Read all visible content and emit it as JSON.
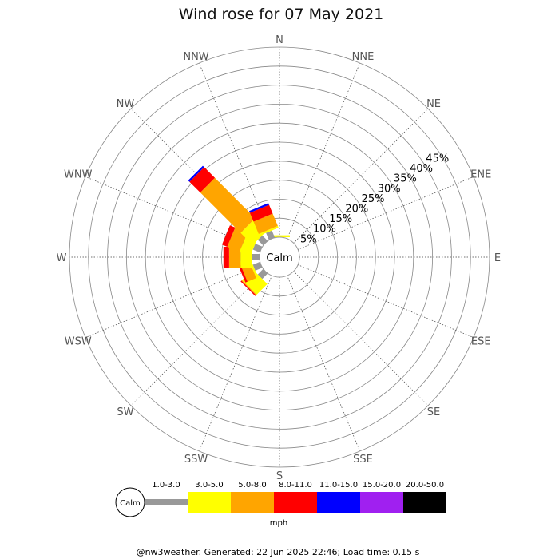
{
  "title": "Wind rose for 07 May 2021",
  "calm_label": "Calm",
  "unit_label": "mph",
  "footer": "@nw3weather. Generated: 22 Jun 2025 22:46; Load time: 0.15 s",
  "chart_data": {
    "type": "wind-rose",
    "title": "Wind rose for 07 May 2021",
    "radial_unit": "%",
    "radial_ticks": [
      "5%",
      "10%",
      "15%",
      "20%",
      "25%",
      "30%",
      "35%",
      "40%",
      "45%"
    ],
    "radial_max": 50,
    "directions": [
      "N",
      "NNE",
      "NE",
      "ENE",
      "E",
      "ESE",
      "SE",
      "SSE",
      "S",
      "SSW",
      "SW",
      "WSW",
      "W",
      "WNW",
      "NW",
      "NNW"
    ],
    "speed_bins": [
      {
        "label": "1.0-3.0",
        "color": "#999999"
      },
      {
        "label": "3.0-5.0",
        "color": "#ffff00"
      },
      {
        "label": "5.0-8.0",
        "color": "#ffa500"
      },
      {
        "label": "8.0-11.0",
        "color": "#ff0000"
      },
      {
        "label": "11.0-15.0",
        "color": "#0000ff"
      },
      {
        "label": "15.0-20.0",
        "color": "#a020f0"
      },
      {
        "label": "20.0-50.0",
        "color": "#000000"
      }
    ],
    "series": [
      {
        "direction": "N",
        "values": [
          0,
          0.5,
          0,
          0,
          0,
          0,
          0
        ]
      },
      {
        "direction": "NNE",
        "values": [
          0,
          0,
          0,
          0,
          0,
          0,
          0
        ]
      },
      {
        "direction": "NE",
        "values": [
          0,
          0,
          0,
          0,
          0,
          0,
          0
        ]
      },
      {
        "direction": "ENE",
        "values": [
          0,
          0,
          0,
          0,
          0,
          0,
          0
        ]
      },
      {
        "direction": "E",
        "values": [
          0,
          0,
          0,
          0,
          0,
          0,
          0
        ]
      },
      {
        "direction": "ESE",
        "values": [
          0,
          0,
          0,
          0,
          0,
          0,
          0
        ]
      },
      {
        "direction": "SE",
        "values": [
          0,
          0,
          0,
          0,
          0,
          0,
          0
        ]
      },
      {
        "direction": "SSE",
        "values": [
          0,
          0,
          0,
          0,
          0,
          0,
          0
        ]
      },
      {
        "direction": "S",
        "values": [
          0,
          0,
          0,
          0,
          0,
          0,
          0
        ]
      },
      {
        "direction": "SSW",
        "values": [
          0,
          0,
          0,
          0,
          0,
          0,
          0
        ]
      },
      {
        "direction": "SW",
        "values": [
          2,
          4,
          0.2,
          0.3,
          0,
          0,
          0
        ]
      },
      {
        "direction": "WSW",
        "values": [
          2,
          0.5,
          2.5,
          0.6,
          0,
          0,
          0
        ]
      },
      {
        "direction": "W",
        "values": [
          2,
          3,
          3,
          1.5,
          0,
          0,
          0
        ]
      },
      {
        "direction": "WNW",
        "values": [
          2,
          3,
          3.5,
          1.5,
          0,
          0,
          0
        ]
      },
      {
        "direction": "NW",
        "values": [
          2,
          4.5,
          15,
          4,
          0.5,
          0,
          0
        ]
      },
      {
        "direction": "NNW",
        "values": [
          2,
          0.5,
          3.5,
          2.5,
          0.5,
          0,
          0
        ]
      }
    ]
  }
}
